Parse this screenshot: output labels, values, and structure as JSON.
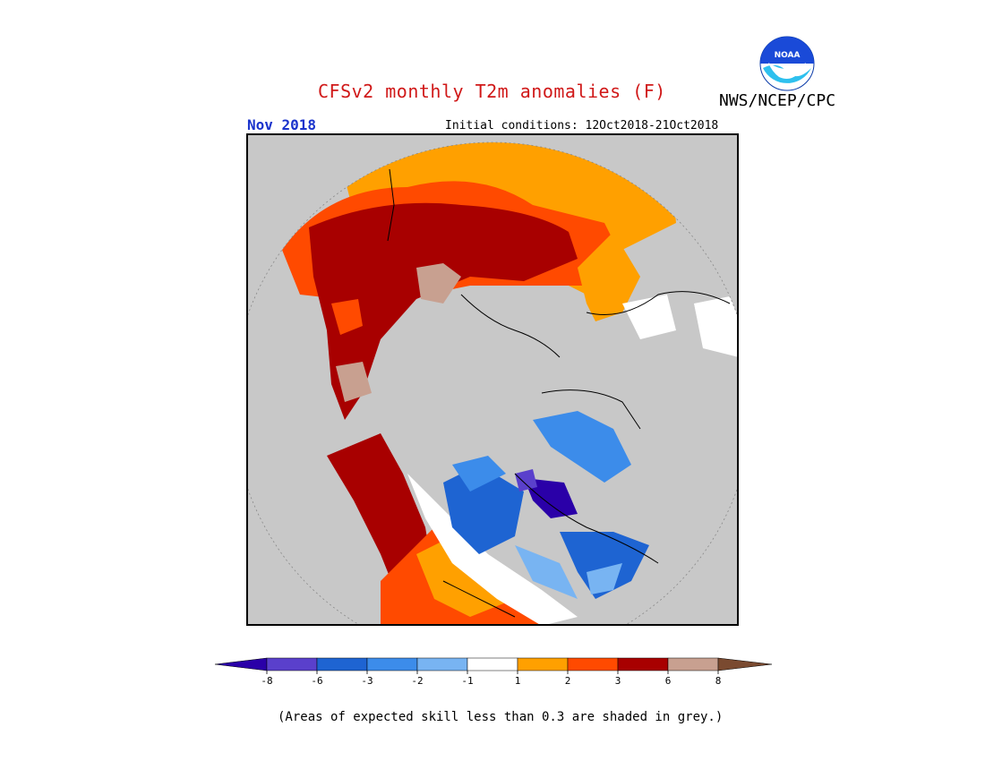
{
  "header": {
    "title": "CFSv2 monthly T2m anomalies (F)",
    "agency": "NWS/NCEP/CPC",
    "logo_text": "NOAA",
    "month": "Nov 2018",
    "initial_conditions": "Initial conditions: 12Oct2018-21Oct2018"
  },
  "legend": {
    "bins": [
      {
        "label": "-8",
        "color": "#2a00a8"
      },
      {
        "label": "-6",
        "color": "#5a40cc"
      },
      {
        "label": "-3",
        "color": "#1e64d2"
      },
      {
        "label": "-2",
        "color": "#3c8cea"
      },
      {
        "label": "-1",
        "color": "#78b4f2"
      },
      {
        "label": "1",
        "color": "#ffffff"
      },
      {
        "label": "2",
        "color": "#ffa000"
      },
      {
        "label": "3",
        "color": "#ff4a00"
      },
      {
        "label": "6",
        "color": "#a80000"
      },
      {
        "label": "8",
        "color": "#c8a090"
      },
      {
        "label": "",
        "color": "#7a4a30"
      }
    ],
    "tick_labels": [
      "-8",
      "-6",
      "-3",
      "-2",
      "-1",
      "1",
      "2",
      "3",
      "6",
      "8"
    ]
  },
  "footer": {
    "note": "(Areas of expected skill less than 0.3 are shaded in grey.)"
  },
  "colors": {
    "title": "#d01818",
    "month": "#1a33cc",
    "low_skill_grey": "#c8c8c8"
  }
}
